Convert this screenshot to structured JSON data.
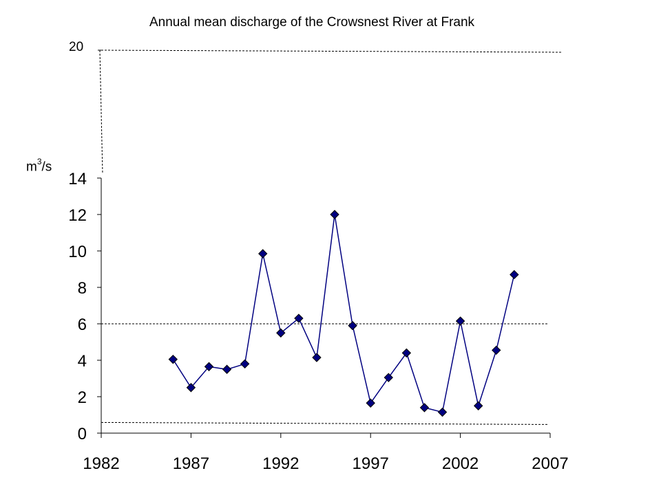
{
  "chart_data": {
    "type": "line",
    "title": "Annual mean discharge of the Crowsnest River at Frank",
    "ylabel": "m",
    "ylabel_superscript": "3",
    "ylabel_suffix": "/s",
    "xlabel": "",
    "xlim": [
      1982,
      2007
    ],
    "ylim": [
      0,
      14
    ],
    "x_ticks": [
      1982,
      1987,
      1992,
      1997,
      2002,
      2007
    ],
    "y_ticks": [
      0,
      2,
      4,
      6,
      8,
      10,
      12,
      14
    ],
    "extended_axis_label": "20",
    "reference_lines": [
      6,
      0.55
    ],
    "grid": false,
    "legend": "none",
    "series": [
      {
        "color": "#000080",
        "marker": "diamond",
        "x": [
          1986,
          1987,
          1988,
          1989,
          1990,
          1991,
          1992,
          1993,
          1994,
          1995,
          1996,
          1997,
          1998,
          1999,
          2000,
          2001,
          2002,
          2003,
          2004,
          2005
        ],
        "values": [
          4.05,
          2.5,
          3.65,
          3.5,
          3.8,
          9.85,
          5.5,
          6.3,
          4.15,
          12.0,
          5.9,
          1.65,
          3.05,
          4.4,
          1.4,
          1.15,
          6.15,
          1.5,
          4.55,
          8.7
        ]
      }
    ]
  }
}
